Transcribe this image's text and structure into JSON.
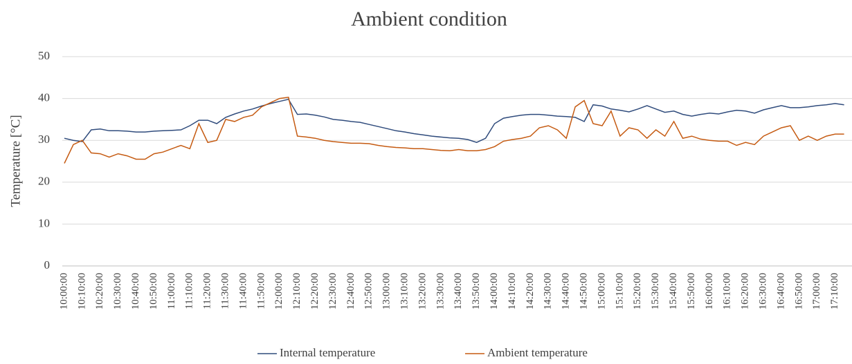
{
  "chart_data": {
    "type": "line",
    "title": "Ambient condition",
    "y_label": "Temperature [°C]",
    "categories": [
      "10:00:00",
      null,
      "10:10:00",
      null,
      "10:20:00",
      null,
      "10:30:00",
      null,
      "10:40:00",
      null,
      "10:50:00",
      null,
      "11:00:00",
      null,
      "11:10:00",
      null,
      "11:20:00",
      null,
      "11:30:00",
      null,
      "11:40:00",
      null,
      "11:50:00",
      null,
      "12:00:00",
      null,
      "12:10:00",
      null,
      "12:20:00",
      null,
      "12:30:00",
      null,
      "12:40:00",
      null,
      "12:50:00",
      null,
      "13:00:00",
      null,
      "13:10:00",
      null,
      "13:20:00",
      null,
      "13:30:00",
      null,
      "13:40:00",
      null,
      "13:50:00",
      null,
      "14:00:00",
      null,
      "14:10:00",
      null,
      "14:20:00",
      null,
      "14:30:00",
      null,
      "14:40:00",
      null,
      "14:50:00",
      null,
      "15:00:00",
      null,
      "15:10:00",
      null,
      "15:20:00",
      null,
      "15:30:00",
      null,
      "15:40:00",
      null,
      "15:50:00",
      null,
      "16:00:00",
      null,
      "16:10:00",
      null,
      "16:20:00",
      null,
      "16:30:00",
      null,
      "16:40:00",
      null,
      "16:50:00",
      null,
      "17:00:00",
      null,
      "17:10:00",
      null
    ],
    "series": [
      {
        "name": "Internal temperature",
        "color": "#2f4b7c",
        "values": [
          30.5,
          30.0,
          29.7,
          32.5,
          32.7,
          32.3,
          32.3,
          32.2,
          32.0,
          32.0,
          32.2,
          32.3,
          32.4,
          32.5,
          33.5,
          34.8,
          34.8,
          34.0,
          35.5,
          36.3,
          37.0,
          37.5,
          38.2,
          38.8,
          39.3,
          39.8,
          36.2,
          36.3,
          36.0,
          35.6,
          35.0,
          34.8,
          34.5,
          34.3,
          33.8,
          33.3,
          32.8,
          32.3,
          32.0,
          31.6,
          31.3,
          31.0,
          30.8,
          30.6,
          30.5,
          30.2,
          29.5,
          30.5,
          34.0,
          35.3,
          35.7,
          36.0,
          36.2,
          36.2,
          36.0,
          35.8,
          35.7,
          35.5,
          34.5,
          38.5,
          38.2,
          37.5,
          37.2,
          36.8,
          37.5,
          38.3,
          37.5,
          36.7,
          37.0,
          36.2,
          35.8,
          36.2,
          36.5,
          36.3,
          36.8,
          37.2,
          37.0,
          36.5,
          37.3,
          37.8,
          38.3,
          37.8,
          37.8,
          38.0,
          38.3,
          38.5,
          38.8,
          38.5
        ]
      },
      {
        "name": "Ambient temperature",
        "color": "#c55a11",
        "values": [
          24.5,
          29.0,
          30.0,
          27.0,
          26.8,
          26.0,
          26.8,
          26.3,
          25.5,
          25.5,
          26.8,
          27.2,
          28.0,
          28.8,
          28.0,
          34.0,
          29.5,
          30.0,
          35.0,
          34.5,
          35.5,
          36.0,
          38.0,
          39.0,
          40.0,
          40.3,
          31.0,
          30.8,
          30.5,
          30.0,
          29.7,
          29.5,
          29.3,
          29.3,
          29.2,
          28.8,
          28.5,
          28.3,
          28.2,
          28.0,
          28.0,
          27.8,
          27.6,
          27.5,
          27.8,
          27.5,
          27.5,
          27.8,
          28.5,
          29.8,
          30.2,
          30.5,
          31.0,
          33.0,
          33.5,
          32.5,
          30.5,
          38.0,
          39.5,
          34.0,
          33.5,
          37.0,
          31.0,
          33.0,
          32.5,
          30.5,
          32.5,
          31.0,
          34.5,
          30.5,
          31.0,
          30.3,
          30.0,
          29.8,
          29.8,
          28.8,
          29.5,
          29.0,
          31.0,
          32.0,
          33.0,
          33.5,
          30.0,
          31.0,
          30.0,
          31.0,
          31.5,
          31.5
        ]
      }
    ],
    "ylim": [
      0,
      50
    ],
    "yticks": [
      0,
      10,
      20,
      30,
      40,
      50
    ],
    "grid": true
  }
}
